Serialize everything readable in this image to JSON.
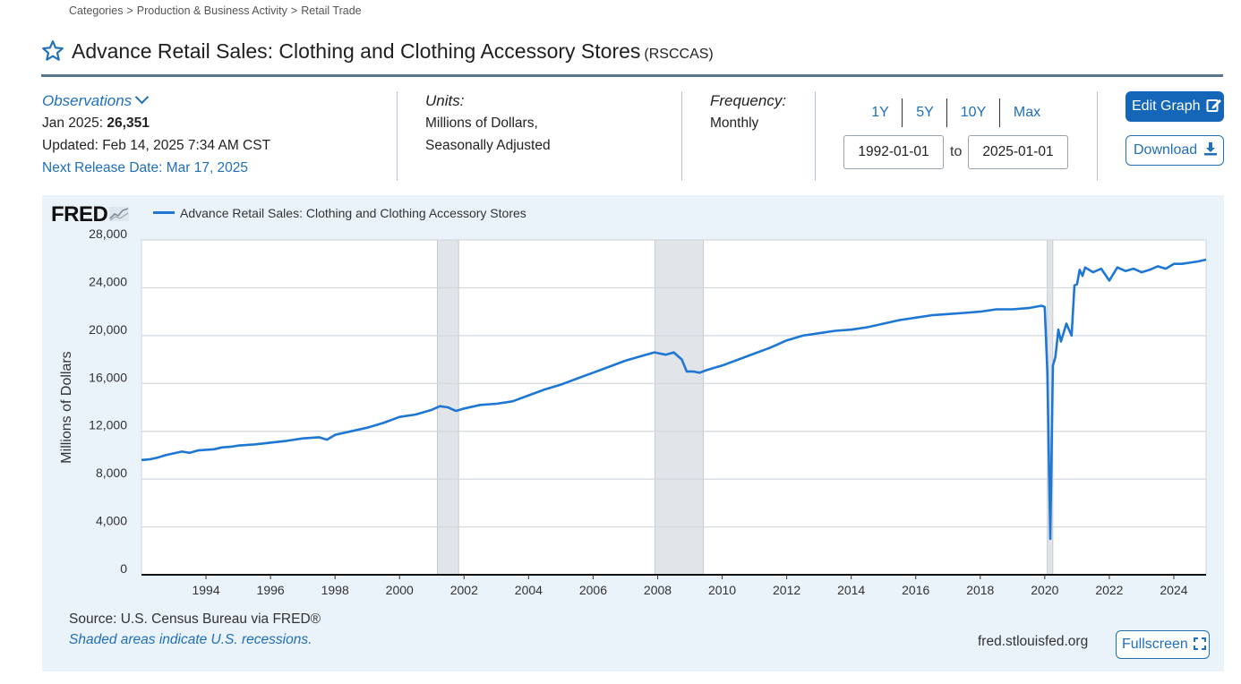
{
  "breadcrumb": {
    "items": [
      "Categories",
      "Production & Business Activity",
      "Retail Trade"
    ],
    "separator": ">"
  },
  "series": {
    "title": "Advance Retail Sales: Clothing and Clothing Accessory Stores",
    "code": "(RSCCAS)"
  },
  "observations": {
    "label": "Observations",
    "latest_label": "Jan 2025:",
    "latest_value": "26,351",
    "updated": "Updated: Feb 14, 2025 7:34 AM CST",
    "next_release": "Next Release Date: Mar 17, 2025"
  },
  "units": {
    "label": "Units:",
    "line1": "Millions of Dollars,",
    "line2": "Seasonally Adjusted"
  },
  "frequency": {
    "label": "Frequency:",
    "value": "Monthly"
  },
  "range": {
    "buttons": [
      "1Y",
      "5Y",
      "10Y",
      "Max"
    ],
    "start": "1992-01-01",
    "to": "to",
    "end": "2025-01-01"
  },
  "actions": {
    "edit_label": "Edit Graph",
    "download_label": "Download",
    "fullscreen_label": "Fullscreen"
  },
  "footer": {
    "source": "Source: U.S. Census Bureau via FRED®",
    "recession_note": "Shaded areas indicate U.S. recessions.",
    "site": "fred.stlouisfed.org"
  },
  "logo": {
    "text": "FRED"
  },
  "colors": {
    "line": "#1f77d4",
    "accent": "#1466b8",
    "panel": "#eaf2fa",
    "recession": "#e1e5ea"
  },
  "chart_data": {
    "type": "line",
    "legend": "Advance Retail Sales: Clothing and Clothing Accessory Stores",
    "ylabel": "Millions of Dollars",
    "xlabel": "",
    "ylim": [
      0,
      28000
    ],
    "xlim": [
      1992.0,
      2025.0
    ],
    "yticks": [
      0,
      4000,
      8000,
      12000,
      16000,
      20000,
      24000,
      28000
    ],
    "ytick_labels": [
      "0",
      "4,000",
      "8,000",
      "12,000",
      "16,000",
      "20,000",
      "24,000",
      "28,000"
    ],
    "xticks": [
      1994,
      1996,
      1998,
      2000,
      2002,
      2004,
      2006,
      2008,
      2010,
      2012,
      2014,
      2016,
      2018,
      2020,
      2022,
      2024
    ],
    "grid": true,
    "recessions": [
      [
        2001.17,
        2001.83
      ],
      [
        2007.92,
        2009.42
      ],
      [
        2020.08,
        2020.25
      ]
    ],
    "series": [
      {
        "name": "Advance Retail Sales: Clothing and Clothing Accessory Stores",
        "x": [
          1992.0,
          1992.25,
          1992.5,
          1992.75,
          1993.0,
          1993.25,
          1993.5,
          1993.75,
          1994.0,
          1994.25,
          1994.5,
          1994.75,
          1995.0,
          1995.5,
          1996.0,
          1996.5,
          1997.0,
          1997.5,
          1997.75,
          1998.0,
          1998.5,
          1999.0,
          1999.5,
          2000.0,
          2000.5,
          2001.0,
          2001.25,
          2001.5,
          2001.75,
          2002.0,
          2002.5,
          2003.0,
          2003.5,
          2004.0,
          2004.5,
          2005.0,
          2005.5,
          2006.0,
          2006.5,
          2007.0,
          2007.5,
          2007.9,
          2008.25,
          2008.5,
          2008.75,
          2008.9,
          2009.1,
          2009.3,
          2009.5,
          2009.75,
          2010.0,
          2010.5,
          2011.0,
          2011.5,
          2012.0,
          2012.5,
          2013.0,
          2013.5,
          2014.0,
          2014.5,
          2015.0,
          2015.5,
          2016.0,
          2016.5,
          2017.0,
          2017.5,
          2018.0,
          2018.5,
          2019.0,
          2019.5,
          2019.9,
          2020.0,
          2020.08,
          2020.17,
          2020.25,
          2020.33,
          2020.42,
          2020.5,
          2020.67,
          2020.83,
          2020.92,
          2021.0,
          2021.08,
          2021.17,
          2021.25,
          2021.5,
          2021.75,
          2022.0,
          2022.25,
          2022.5,
          2022.75,
          2023.0,
          2023.25,
          2023.5,
          2023.75,
          2024.0,
          2024.25,
          2024.5,
          2024.75,
          2025.0
        ],
        "values": [
          9600,
          9650,
          9800,
          10000,
          10150,
          10300,
          10200,
          10400,
          10450,
          10500,
          10650,
          10700,
          10800,
          10900,
          11050,
          11200,
          11400,
          11500,
          11300,
          11700,
          12000,
          12300,
          12700,
          13200,
          13400,
          13800,
          14100,
          14000,
          13700,
          13900,
          14200,
          14300,
          14500,
          15000,
          15500,
          15900,
          16400,
          16900,
          17400,
          17900,
          18300,
          18600,
          18400,
          18600,
          18000,
          17000,
          17000,
          16900,
          17100,
          17300,
          17500,
          18000,
          18500,
          19000,
          19600,
          20000,
          20200,
          20400,
          20500,
          20700,
          21000,
          21300,
          21500,
          21700,
          21800,
          21900,
          22000,
          22200,
          22200,
          22300,
          22500,
          22400,
          17000,
          3000,
          17500,
          18200,
          20500,
          19500,
          21000,
          20000,
          24200,
          24300,
          25500,
          25000,
          25700,
          25300,
          25600,
          24600,
          25700,
          25400,
          25600,
          25300,
          25500,
          25800,
          25600,
          26000,
          26000,
          26100,
          26200,
          26351
        ]
      }
    ]
  }
}
